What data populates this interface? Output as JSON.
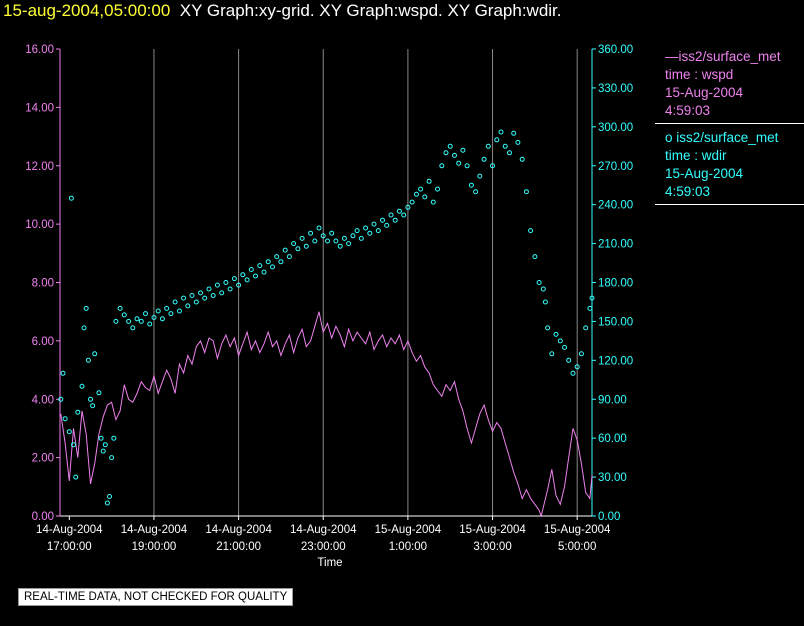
{
  "header": {
    "timestamp": "15-aug-2004,05:00:00",
    "titles": "XY Graph:xy-grid.  XY Graph:wspd.  XY Graph:wdir."
  },
  "legend": [
    {
      "marker": "—",
      "source": "iss2/surface_met",
      "var": "time : wspd",
      "date": "15-Aug-2004",
      "time": "4:59:03",
      "color": "#ee82ee"
    },
    {
      "marker": "o",
      "source": "iss2/surface_met",
      "var": "time : wdir",
      "date": "15-Aug-2004",
      "time": "4:59:03",
      "color": "#33ffff"
    }
  ],
  "footer": "REAL-TIME DATA, NOT CHECKED FOR QUALITY",
  "chart_data": {
    "type": "line",
    "xlabel": "Time",
    "x_ticks": [
      {
        "h": 17,
        "l1": "14-Aug-2004",
        "l2": "17:00:00"
      },
      {
        "h": 19,
        "l1": "14-Aug-2004",
        "l2": "19:00:00"
      },
      {
        "h": 21,
        "l1": "14-Aug-2004",
        "l2": "21:00:00"
      },
      {
        "h": 23,
        "l1": "14-Aug-2004",
        "l2": "23:00:00"
      },
      {
        "h": 25,
        "l1": "15-Aug-2004",
        "l2": "1:00:00"
      },
      {
        "h": 27,
        "l1": "15-Aug-2004",
        "l2": "3:00:00"
      },
      {
        "h": 29,
        "l1": "15-Aug-2004",
        "l2": "5:00:00"
      }
    ],
    "x_range": [
      "14-Aug-2004 16:47",
      "15-Aug-2004 05:00"
    ],
    "y_left": {
      "min": 0,
      "max": 16,
      "ticks": [
        "0.00",
        "2.00",
        "4.00",
        "6.00",
        "8.00",
        "10.00",
        "12.00",
        "14.00",
        "16.00"
      ],
      "color": "#ee82ee"
    },
    "y_right": {
      "min": 0,
      "max": 360,
      "ticks": [
        "0.00",
        "30.00",
        "60.00",
        "90.00",
        "120.00",
        "150.00",
        "180.00",
        "210.00",
        "240.00",
        "270.00",
        "300.00",
        "330.00",
        "360.00"
      ],
      "color": "#33ffff"
    },
    "grid": "vertical at x ticks",
    "series": [
      {
        "name": "iss2/surface_met time : wspd",
        "axis": "left",
        "style": "line",
        "color": "#ee82ee",
        "values": [
          [
            16.8,
            3.5
          ],
          [
            16.9,
            2.5
          ],
          [
            17.0,
            1.2
          ],
          [
            17.1,
            3.0
          ],
          [
            17.2,
            2.0
          ],
          [
            17.3,
            3.6
          ],
          [
            17.4,
            2.8
          ],
          [
            17.5,
            1.1
          ],
          [
            17.6,
            1.8
          ],
          [
            17.7,
            2.8
          ],
          [
            17.8,
            3.4
          ],
          [
            17.9,
            3.8
          ],
          [
            18.0,
            3.9
          ],
          [
            18.1,
            3.3
          ],
          [
            18.2,
            3.6
          ],
          [
            18.3,
            4.5
          ],
          [
            18.4,
            4.0
          ],
          [
            18.5,
            3.9
          ],
          [
            18.6,
            4.2
          ],
          [
            18.7,
            4.6
          ],
          [
            18.8,
            4.4
          ],
          [
            18.9,
            4.3
          ],
          [
            19.0,
            4.8
          ],
          [
            19.1,
            4.2
          ],
          [
            19.2,
            4.6
          ],
          [
            19.3,
            5.0
          ],
          [
            19.4,
            4.7
          ],
          [
            19.5,
            4.2
          ],
          [
            19.6,
            5.2
          ],
          [
            19.7,
            4.9
          ],
          [
            19.8,
            5.5
          ],
          [
            19.9,
            5.2
          ],
          [
            20.0,
            5.8
          ],
          [
            20.1,
            6.0
          ],
          [
            20.2,
            5.6
          ],
          [
            20.3,
            6.1
          ],
          [
            20.4,
            6.0
          ],
          [
            20.5,
            5.4
          ],
          [
            20.6,
            5.9
          ],
          [
            20.7,
            6.2
          ],
          [
            20.8,
            5.8
          ],
          [
            20.9,
            6.1
          ],
          [
            21.0,
            5.5
          ],
          [
            21.1,
            5.9
          ],
          [
            21.2,
            6.3
          ],
          [
            21.3,
            5.7
          ],
          [
            21.4,
            6.0
          ],
          [
            21.5,
            5.6
          ],
          [
            21.6,
            5.9
          ],
          [
            21.7,
            6.3
          ],
          [
            21.8,
            5.8
          ],
          [
            21.9,
            6.0
          ],
          [
            22.0,
            5.5
          ],
          [
            22.1,
            5.9
          ],
          [
            22.2,
            6.2
          ],
          [
            22.3,
            5.6
          ],
          [
            22.4,
            6.1
          ],
          [
            22.5,
            6.4
          ],
          [
            22.6,
            5.8
          ],
          [
            22.7,
            6.0
          ],
          [
            22.8,
            6.5
          ],
          [
            22.9,
            7.0
          ],
          [
            23.0,
            6.3
          ],
          [
            23.1,
            6.6
          ],
          [
            23.2,
            6.1
          ],
          [
            23.3,
            6.5
          ],
          [
            23.4,
            6.2
          ],
          [
            23.5,
            5.8
          ],
          [
            23.6,
            6.4
          ],
          [
            23.7,
            6.0
          ],
          [
            23.8,
            6.3
          ],
          [
            23.9,
            6.1
          ],
          [
            24.0,
            5.9
          ],
          [
            24.1,
            6.3
          ],
          [
            24.2,
            5.7
          ],
          [
            24.3,
            6.0
          ],
          [
            24.4,
            6.2
          ],
          [
            24.5,
            5.8
          ],
          [
            24.6,
            6.1
          ],
          [
            24.7,
            5.9
          ],
          [
            24.8,
            6.2
          ],
          [
            24.9,
            5.7
          ],
          [
            25.0,
            6.0
          ],
          [
            25.1,
            5.6
          ],
          [
            25.2,
            5.3
          ],
          [
            25.3,
            5.5
          ],
          [
            25.4,
            5.1
          ],
          [
            25.5,
            4.9
          ],
          [
            25.6,
            4.5
          ],
          [
            25.7,
            4.3
          ],
          [
            25.8,
            4.1
          ],
          [
            25.9,
            4.5
          ],
          [
            26.0,
            4.3
          ],
          [
            26.1,
            4.6
          ],
          [
            26.2,
            4.0
          ],
          [
            26.3,
            3.6
          ],
          [
            26.4,
            3.0
          ],
          [
            26.5,
            2.5
          ],
          [
            26.6,
            3.0
          ],
          [
            26.7,
            3.5
          ],
          [
            26.8,
            3.8
          ],
          [
            26.9,
            3.3
          ],
          [
            27.0,
            2.9
          ],
          [
            27.1,
            3.2
          ],
          [
            27.2,
            3.0
          ],
          [
            27.3,
            2.5
          ],
          [
            27.4,
            2.0
          ],
          [
            27.5,
            1.5
          ],
          [
            27.6,
            1.1
          ],
          [
            27.7,
            0.6
          ],
          [
            27.8,
            0.9
          ],
          [
            27.9,
            0.6
          ],
          [
            28.0,
            0.4
          ],
          [
            28.1,
            0.2
          ],
          [
            28.15,
            0.0
          ],
          [
            28.3,
            0.9
          ],
          [
            28.4,
            1.6
          ],
          [
            28.5,
            0.7
          ],
          [
            28.6,
            0.4
          ],
          [
            28.7,
            1.0
          ],
          [
            28.8,
            2.0
          ],
          [
            28.9,
            3.0
          ],
          [
            29.0,
            2.6
          ],
          [
            29.1,
            1.8
          ],
          [
            29.2,
            0.8
          ],
          [
            29.3,
            0.6
          ],
          [
            29.35,
            1.4
          ]
        ]
      },
      {
        "name": "iss2/surface_met time : wdir",
        "axis": "right",
        "style": "scatter",
        "color": "#33ffff",
        "values": [
          [
            16.8,
            90
          ],
          [
            16.85,
            110
          ],
          [
            16.9,
            75
          ],
          [
            17.0,
            65
          ],
          [
            17.05,
            245
          ],
          [
            17.1,
            55
          ],
          [
            17.15,
            30
          ],
          [
            17.2,
            80
          ],
          [
            17.3,
            100
          ],
          [
            17.35,
            145
          ],
          [
            17.4,
            160
          ],
          [
            17.45,
            120
          ],
          [
            17.5,
            90
          ],
          [
            17.55,
            85
          ],
          [
            17.6,
            125
          ],
          [
            17.7,
            95
          ],
          [
            17.75,
            60
          ],
          [
            17.8,
            50
          ],
          [
            17.85,
            55
          ],
          [
            17.9,
            10
          ],
          [
            17.95,
            15
          ],
          [
            18.0,
            45
          ],
          [
            18.05,
            60
          ],
          [
            18.1,
            150
          ],
          [
            18.2,
            160
          ],
          [
            18.3,
            155
          ],
          [
            18.4,
            150
          ],
          [
            18.5,
            145
          ],
          [
            18.6,
            152
          ],
          [
            18.7,
            150
          ],
          [
            18.8,
            156
          ],
          [
            18.9,
            148
          ],
          [
            19.0,
            153
          ],
          [
            19.1,
            158
          ],
          [
            19.2,
            152
          ],
          [
            19.3,
            160
          ],
          [
            19.4,
            156
          ],
          [
            19.5,
            165
          ],
          [
            19.6,
            158
          ],
          [
            19.7,
            168
          ],
          [
            19.8,
            162
          ],
          [
            19.9,
            170
          ],
          [
            20.0,
            165
          ],
          [
            20.1,
            172
          ],
          [
            20.2,
            168
          ],
          [
            20.3,
            175
          ],
          [
            20.4,
            170
          ],
          [
            20.5,
            178
          ],
          [
            20.6,
            172
          ],
          [
            20.7,
            180
          ],
          [
            20.8,
            175
          ],
          [
            20.9,
            183
          ],
          [
            21.0,
            178
          ],
          [
            21.1,
            186
          ],
          [
            21.2,
            182
          ],
          [
            21.3,
            190
          ],
          [
            21.4,
            185
          ],
          [
            21.5,
            193
          ],
          [
            21.6,
            188
          ],
          [
            21.7,
            196
          ],
          [
            21.8,
            192
          ],
          [
            21.9,
            200
          ],
          [
            22.0,
            196
          ],
          [
            22.1,
            205
          ],
          [
            22.2,
            200
          ],
          [
            22.3,
            210
          ],
          [
            22.4,
            206
          ],
          [
            22.5,
            214
          ],
          [
            22.6,
            208
          ],
          [
            22.7,
            218
          ],
          [
            22.8,
            212
          ],
          [
            22.9,
            222
          ],
          [
            23.0,
            216
          ],
          [
            23.1,
            212
          ],
          [
            23.2,
            218
          ],
          [
            23.3,
            212
          ],
          [
            23.4,
            208
          ],
          [
            23.5,
            214
          ],
          [
            23.6,
            210
          ],
          [
            23.7,
            216
          ],
          [
            23.8,
            220
          ],
          [
            23.9,
            214
          ],
          [
            24.0,
            222
          ],
          [
            24.1,
            218
          ],
          [
            24.2,
            225
          ],
          [
            24.3,
            220
          ],
          [
            24.4,
            228
          ],
          [
            24.5,
            224
          ],
          [
            24.6,
            232
          ],
          [
            24.7,
            228
          ],
          [
            24.8,
            235
          ],
          [
            24.9,
            232
          ],
          [
            25.0,
            238
          ],
          [
            25.1,
            242
          ],
          [
            25.2,
            248
          ],
          [
            25.3,
            252
          ],
          [
            25.4,
            246
          ],
          [
            25.5,
            258
          ],
          [
            25.6,
            242
          ],
          [
            25.7,
            252
          ],
          [
            25.8,
            270
          ],
          [
            25.9,
            280
          ],
          [
            26.0,
            285
          ],
          [
            26.1,
            278
          ],
          [
            26.2,
            272
          ],
          [
            26.3,
            282
          ],
          [
            26.4,
            270
          ],
          [
            26.5,
            255
          ],
          [
            26.6,
            250
          ],
          [
            26.7,
            262
          ],
          [
            26.8,
            275
          ],
          [
            26.9,
            285
          ],
          [
            27.0,
            270
          ],
          [
            27.1,
            290
          ],
          [
            27.2,
            296
          ],
          [
            27.3,
            285
          ],
          [
            27.4,
            280
          ],
          [
            27.5,
            295
          ],
          [
            27.6,
            288
          ],
          [
            27.7,
            275
          ],
          [
            27.8,
            250
          ],
          [
            27.9,
            220
          ],
          [
            28.0,
            200
          ],
          [
            28.1,
            180
          ],
          [
            28.2,
            175
          ],
          [
            28.25,
            165
          ],
          [
            28.3,
            145
          ],
          [
            28.4,
            125
          ],
          [
            28.5,
            140
          ],
          [
            28.6,
            135
          ],
          [
            28.7,
            130
          ],
          [
            28.8,
            120
          ],
          [
            28.9,
            110
          ],
          [
            29.0,
            115
          ],
          [
            29.1,
            125
          ],
          [
            29.2,
            145
          ],
          [
            29.3,
            160
          ],
          [
            29.35,
            168
          ]
        ]
      }
    ]
  }
}
